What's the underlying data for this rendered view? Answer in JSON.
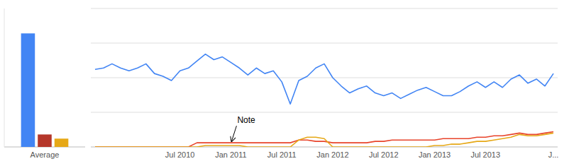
{
  "chart_data": [
    {
      "type": "bar",
      "categories": [
        "Average"
      ],
      "series": [
        {
          "color": "#4285f4",
          "values": [
            82
          ]
        },
        {
          "color": "#b5372a",
          "values": [
            9
          ]
        },
        {
          "color": "#e6a817",
          "values": [
            6
          ]
        }
      ],
      "ylim": [
        0,
        100
      ],
      "grid": false,
      "tick_labels": "x"
    },
    {
      "type": "line",
      "categories": [
        null,
        null,
        null,
        null,
        null,
        null,
        null,
        null,
        null,
        null,
        "Jul 2010",
        null,
        null,
        null,
        null,
        null,
        "Jan 2011",
        null,
        null,
        null,
        null,
        null,
        "Jul 2011",
        null,
        null,
        null,
        null,
        null,
        "Jan 2012",
        null,
        null,
        null,
        null,
        null,
        "Jul 2012",
        null,
        null,
        null,
        null,
        null,
        "Jan 2013",
        null,
        null,
        null,
        null,
        null,
        "Jul 2013",
        null,
        null,
        null,
        null,
        null,
        null,
        null,
        "J..."
      ],
      "series": [
        {
          "color": "#4285f4",
          "values": [
            56,
            57,
            60,
            57,
            55,
            57,
            60,
            53,
            51,
            48,
            55,
            57,
            62,
            67,
            63,
            65,
            61,
            57,
            52,
            57,
            53,
            55,
            47,
            31,
            48,
            51,
            57,
            60,
            50,
            44,
            39,
            42,
            44,
            39,
            37,
            39,
            35,
            38,
            41,
            43,
            40,
            37,
            37,
            40,
            44,
            47,
            43,
            47,
            43,
            49,
            52,
            46,
            49,
            44,
            53
          ]
        },
        {
          "color": "#e8432a",
          "values": [
            0,
            0,
            0,
            0,
            0,
            0,
            0,
            0,
            0,
            0,
            0,
            0,
            3,
            3,
            3,
            3,
            3,
            3,
            3,
            3,
            3,
            3,
            3,
            3,
            5,
            5,
            4,
            4,
            3,
            3,
            3,
            3,
            3,
            4,
            4,
            5,
            5,
            5,
            5,
            5,
            5,
            6,
            6,
            6,
            6,
            7,
            7,
            8,
            8,
            9,
            10,
            9,
            9,
            10,
            11
          ]
        },
        {
          "color": "#e6a817",
          "values": [
            0,
            0,
            0,
            0,
            0,
            0,
            0,
            0,
            0,
            0,
            0,
            0,
            0,
            1,
            1,
            1,
            1,
            1,
            0,
            0,
            0,
            0,
            0,
            0,
            5,
            7,
            7,
            6,
            0,
            0,
            0,
            0,
            0,
            0,
            0,
            0,
            0,
            0,
            0,
            0,
            1,
            1,
            2,
            2,
            3,
            4,
            4,
            5,
            6,
            7,
            9,
            8,
            8,
            9,
            10
          ]
        }
      ],
      "ylim": [
        0,
        100
      ],
      "yticks": [
        0,
        25,
        50,
        75,
        100
      ],
      "grid": true,
      "tick_labels": "x",
      "annotations": [
        {
          "text": "Note",
          "x": 16,
          "y": 3
        }
      ]
    }
  ]
}
